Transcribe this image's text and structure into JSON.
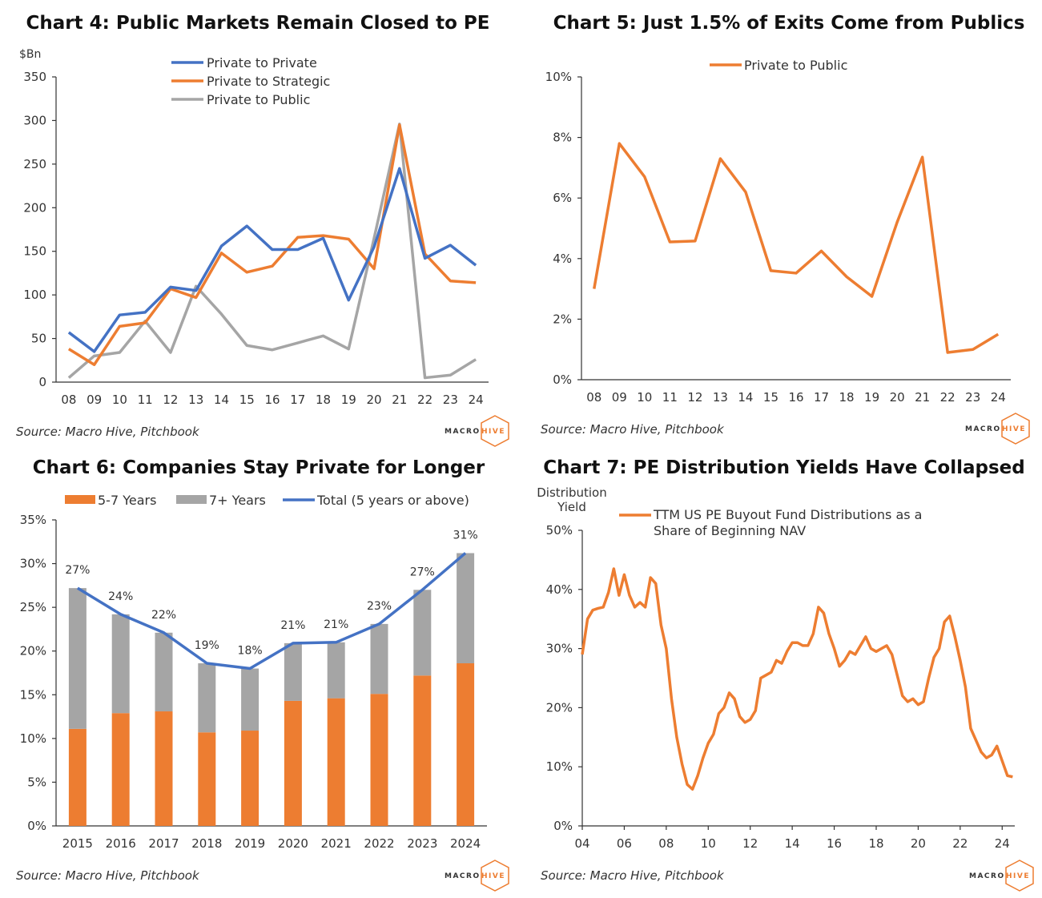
{
  "logo": {
    "macro": "MACRO",
    "hive": "HIVE"
  },
  "colors": {
    "blue": "#4472C4",
    "orange": "#ED7D31",
    "gray": "#A5A5A5",
    "logo_orange": "#ED7D31",
    "logo_dark": "#333333"
  },
  "chart_data": [
    {
      "id": "chart4",
      "type": "line",
      "title": "Chart 4: Public Markets Remain Closed to PE",
      "ylabel": "$Bn",
      "source": "Source: Macro Hive, Pitchbook",
      "categories": [
        "08",
        "09",
        "10",
        "11",
        "12",
        "13",
        "14",
        "15",
        "16",
        "17",
        "18",
        "19",
        "20",
        "21",
        "22",
        "23",
        "24"
      ],
      "ylim": [
        0,
        350
      ],
      "yticks": [
        "0",
        "50",
        "100",
        "150",
        "200",
        "250",
        "300",
        "350"
      ],
      "legend_position": "top",
      "series": [
        {
          "name": "Private to Private",
          "color": "#4472C4",
          "values": [
            57,
            35,
            77,
            80,
            109,
            105,
            156,
            179,
            152,
            152,
            165,
            94,
            155,
            245,
            142,
            157,
            134
          ]
        },
        {
          "name": "Private to Strategic",
          "color": "#ED7D31",
          "values": [
            38,
            20,
            64,
            68,
            107,
            97,
            148,
            126,
            133,
            166,
            168,
            164,
            130,
            295,
            147,
            116,
            114
          ]
        },
        {
          "name": "Private to Public",
          "color": "#A5A5A5",
          "values": [
            5,
            30,
            34,
            70,
            34,
            110,
            78,
            42,
            37,
            45,
            53,
            38,
            165,
            296,
            5,
            8,
            26
          ]
        }
      ]
    },
    {
      "id": "chart5",
      "type": "line",
      "title": "Chart 5: Just 1.5% of Exits Come from Publics",
      "source": "Source: Macro Hive, Pitchbook",
      "categories": [
        "08",
        "09",
        "10",
        "11",
        "12",
        "13",
        "14",
        "15",
        "16",
        "17",
        "18",
        "19",
        "20",
        "21",
        "22",
        "23",
        "24"
      ],
      "ylim": [
        0,
        10
      ],
      "yticks": [
        "0%",
        "2%",
        "4%",
        "6%",
        "8%",
        "10%"
      ],
      "legend_position": "top",
      "series": [
        {
          "name": "Private to Public",
          "color": "#ED7D31",
          "values": [
            3.0,
            7.8,
            6.7,
            4.55,
            4.58,
            7.3,
            6.2,
            3.6,
            3.52,
            4.25,
            3.4,
            2.75,
            5.2,
            7.35,
            0.9,
            1.0,
            1.5
          ]
        }
      ]
    },
    {
      "id": "chart6",
      "type": "bar",
      "stacked": true,
      "title": "Chart 6: Companies Stay Private for Longer",
      "source": "Source: Macro Hive, Pitchbook",
      "categories": [
        "2015",
        "2016",
        "2017",
        "2018",
        "2019",
        "2020",
        "2021",
        "2022",
        "2023",
        "2024"
      ],
      "ylim": [
        0,
        35
      ],
      "yticks": [
        "0%",
        "5%",
        "10%",
        "15%",
        "20%",
        "25%",
        "30%",
        "35%"
      ],
      "legend_position": "top",
      "series": [
        {
          "name": "5-7 Years",
          "color": "#ED7D31",
          "values": [
            11.1,
            12.9,
            13.1,
            10.7,
            10.9,
            14.3,
            14.6,
            15.1,
            17.2,
            18.6
          ]
        },
        {
          "name": "7+ Years",
          "color": "#A5A5A5",
          "values": [
            16.1,
            11.3,
            9.0,
            7.9,
            7.1,
            6.6,
            6.4,
            8.0,
            9.8,
            12.6
          ]
        }
      ],
      "line": {
        "name": "Total (5 years or above)",
        "color": "#4472C4",
        "values": [
          27.2,
          24.2,
          22.1,
          18.6,
          18.0,
          20.9,
          21.0,
          23.1,
          27.0,
          31.2
        ]
      },
      "data_labels": [
        "27%",
        "24%",
        "22%",
        "19%",
        "18%",
        "21%",
        "21%",
        "23%",
        "27%",
        "31%"
      ]
    },
    {
      "id": "chart7",
      "type": "line",
      "title": "Chart 7: PE Distribution Yields Have Collapsed",
      "ylabel_line1": "Distribution",
      "ylabel_line2": "Yield",
      "source": "Source: Macro Hive, Pitchbook",
      "xlim": [
        2004,
        2024.6
      ],
      "xticks": [
        "04",
        "06",
        "08",
        "10",
        "12",
        "14",
        "16",
        "18",
        "20",
        "22",
        "24"
      ],
      "ylim": [
        0,
        50
      ],
      "yticks": [
        "0%",
        "10%",
        "20%",
        "30%",
        "40%",
        "50%"
      ],
      "legend_position": "top",
      "series": [
        {
          "name_line1": "TTM US PE Buyout Fund Distributions as a",
          "name_line2": "Share of Beginning NAV",
          "color": "#ED7D31",
          "x": [
            2004.0,
            2004.25,
            2004.5,
            2004.75,
            2005.0,
            2005.25,
            2005.5,
            2005.75,
            2006.0,
            2006.25,
            2006.5,
            2006.75,
            2007.0,
            2007.25,
            2007.5,
            2007.75,
            2008.0,
            2008.25,
            2008.5,
            2008.75,
            2009.0,
            2009.25,
            2009.5,
            2009.75,
            2010.0,
            2010.25,
            2010.5,
            2010.75,
            2011.0,
            2011.25,
            2011.5,
            2011.75,
            2012.0,
            2012.25,
            2012.5,
            2012.75,
            2013.0,
            2013.25,
            2013.5,
            2013.75,
            2014.0,
            2014.25,
            2014.5,
            2014.75,
            2015.0,
            2015.25,
            2015.5,
            2015.75,
            2016.0,
            2016.25,
            2016.5,
            2016.75,
            2017.0,
            2017.25,
            2017.5,
            2017.75,
            2018.0,
            2018.25,
            2018.5,
            2018.75,
            2019.0,
            2019.25,
            2019.5,
            2019.75,
            2020.0,
            2020.25,
            2020.5,
            2020.75,
            2021.0,
            2021.25,
            2021.5,
            2021.75,
            2022.0,
            2022.25,
            2022.5,
            2022.75,
            2023.0,
            2023.25,
            2023.5,
            2023.75,
            2024.0,
            2024.25,
            2024.5
          ],
          "values": [
            29,
            35,
            36.5,
            36.8,
            37,
            39.5,
            43.5,
            39,
            42.5,
            39,
            37,
            37.8,
            37,
            42,
            41,
            34,
            30,
            21.5,
            15,
            10.5,
            7,
            6.2,
            8.5,
            11.5,
            14,
            15.5,
            19,
            20,
            22.5,
            21.5,
            18.5,
            17.5,
            18,
            19.5,
            25,
            25.5,
            26,
            28,
            27.5,
            29.5,
            31,
            31,
            30.5,
            30.5,
            32.5,
            37,
            36,
            32.5,
            30,
            27,
            28,
            29.5,
            29,
            30.5,
            32,
            30,
            29.5,
            30,
            30.5,
            29,
            25.5,
            22,
            21,
            21.5,
            20.5,
            21,
            25,
            28.5,
            30,
            34.5,
            35.5,
            32,
            28,
            23.5,
            16.5,
            14.5,
            12.5,
            11.5,
            12,
            13.5,
            11,
            8.5,
            8.3
          ]
        }
      ]
    }
  ]
}
